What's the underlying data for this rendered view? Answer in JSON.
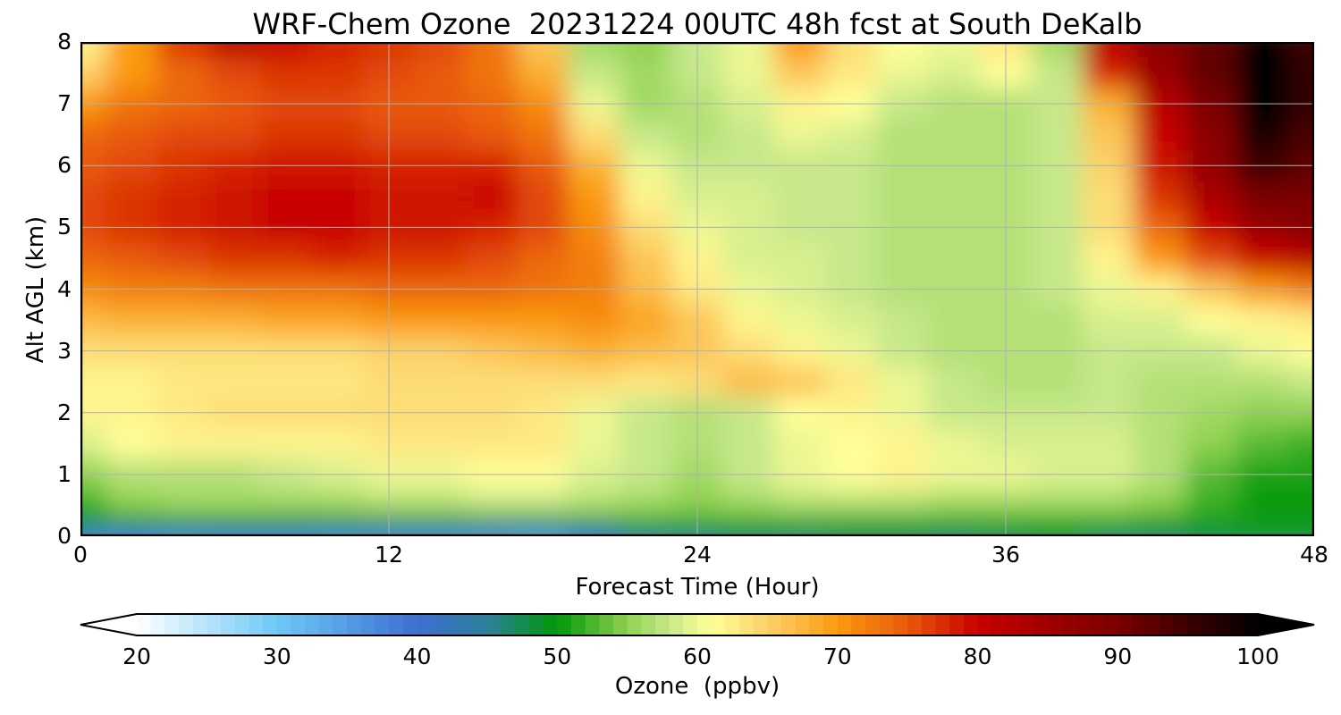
{
  "chart_data": {
    "type": "heatmap",
    "title": "WRF-Chem Ozone  20231224 00UTC 48h fcst at South DeKalb",
    "xlabel": "Forecast Time (Hour)",
    "ylabel": "Alt AGL (km)",
    "xlim": [
      0,
      48
    ],
    "ylim": [
      0,
      8
    ],
    "x_ticks": [
      "0",
      "12",
      "24",
      "36",
      "48"
    ],
    "y_ticks": [
      "0",
      "1",
      "2",
      "3",
      "4",
      "5",
      "6",
      "7",
      "8"
    ],
    "grid": true,
    "colorbar": {
      "label": "Ozone  (ppbv)",
      "min": 20,
      "max": 100,
      "extend": "both",
      "ticks": [
        "20",
        "30",
        "40",
        "50",
        "60",
        "70",
        "80",
        "90",
        "100"
      ],
      "stops": [
        {
          "v": 20,
          "c": "#ffffff"
        },
        {
          "v": 30,
          "c": "#6ec8f6"
        },
        {
          "v": 40,
          "c": "#3f6fd0"
        },
        {
          "v": 45,
          "c": "#2d7f9a"
        },
        {
          "v": 50,
          "c": "#00980a"
        },
        {
          "v": 55,
          "c": "#8fd150"
        },
        {
          "v": 58,
          "c": "#c6e88a"
        },
        {
          "v": 61,
          "c": "#ffff98"
        },
        {
          "v": 65,
          "c": "#fcd16a"
        },
        {
          "v": 70,
          "c": "#fb9a0f"
        },
        {
          "v": 75,
          "c": "#e85a0a"
        },
        {
          "v": 80,
          "c": "#c80000"
        },
        {
          "v": 90,
          "c": "#7a0000"
        },
        {
          "v": 100,
          "c": "#000000"
        }
      ]
    },
    "x_hours": [
      0,
      2,
      4,
      6,
      8,
      10,
      12,
      14,
      16,
      18,
      20,
      22,
      24,
      26,
      28,
      30,
      32,
      34,
      36,
      38,
      40,
      42,
      44,
      46,
      48
    ],
    "z_levels_km": [
      0,
      0.1,
      0.25,
      0.5,
      1,
      1.5,
      2,
      2.5,
      3,
      3.5,
      4,
      4.5,
      5,
      5.5,
      6,
      6.5,
      7,
      7.5,
      8
    ],
    "values": [
      [
        38,
        38,
        37,
        38,
        38,
        37,
        37,
        37,
        36,
        35,
        40,
        44,
        45,
        46,
        46,
        47,
        47,
        46,
        47,
        48,
        46,
        46,
        47,
        48,
        48
      ],
      [
        44,
        43,
        43,
        44,
        44,
        43,
        43,
        43,
        42,
        42,
        45,
        48,
        48,
        49,
        49,
        49,
        49,
        49,
        49,
        50,
        50,
        49,
        50,
        50,
        50
      ],
      [
        50,
        50,
        50,
        50,
        50,
        50,
        50,
        50,
        50,
        50,
        51,
        52,
        52,
        52,
        52,
        52,
        52,
        52,
        52,
        52,
        52,
        51,
        51,
        51,
        51
      ],
      [
        52,
        55,
        56,
        56,
        56,
        56,
        57,
        57,
        58,
        58,
        57,
        56,
        55,
        56,
        57,
        57,
        57,
        56,
        56,
        56,
        56,
        55,
        52,
        50,
        50
      ],
      [
        55,
        57,
        57,
        57,
        58,
        59,
        60,
        60,
        61,
        61,
        59,
        58,
        56,
        58,
        60,
        61,
        62,
        60,
        60,
        59,
        59,
        57,
        53,
        51,
        51
      ],
      [
        59,
        61,
        62,
        62,
        62,
        62,
        63,
        63,
        63,
        63,
        60,
        58,
        57,
        58,
        60,
        61,
        62,
        60,
        59,
        59,
        59,
        57,
        55,
        53,
        52
      ],
      [
        62,
        62,
        63,
        64,
        64,
        64,
        64,
        64,
        64,
        63,
        60,
        58,
        57,
        58,
        61,
        62,
        60,
        58,
        58,
        58,
        58,
        57,
        56,
        55,
        55
      ],
      [
        62,
        62,
        63,
        63,
        63,
        63,
        64,
        64,
        64,
        64,
        64,
        63,
        64,
        67,
        66,
        63,
        60,
        58,
        57,
        57,
        58,
        57,
        57,
        57,
        58
      ],
      [
        64,
        64,
        64,
        64,
        64,
        64,
        65,
        65,
        66,
        67,
        68,
        67,
        66,
        64,
        62,
        60,
        58,
        57,
        57,
        57,
        58,
        58,
        58,
        60,
        61
      ],
      [
        67,
        68,
        68,
        68,
        69,
        69,
        70,
        70,
        70,
        70,
        71,
        69,
        66,
        62,
        60,
        59,
        58,
        57,
        57,
        57,
        59,
        59,
        61,
        62,
        63
      ],
      [
        71,
        72,
        72,
        73,
        73,
        73,
        74,
        74,
        74,
        73,
        72,
        67,
        63,
        60,
        59,
        58,
        57,
        57,
        57,
        58,
        60,
        62,
        66,
        70,
        72
      ],
      [
        74,
        75,
        76,
        77,
        77,
        78,
        77,
        77,
        76,
        74,
        72,
        66,
        62,
        59,
        59,
        58,
        57,
        57,
        57,
        58,
        62,
        70,
        76,
        80,
        82
      ],
      [
        76,
        77,
        78,
        79,
        80,
        80,
        79,
        79,
        78,
        76,
        71,
        64,
        60,
        59,
        58,
        58,
        57,
        57,
        57,
        58,
        64,
        74,
        80,
        86,
        88
      ],
      [
        76,
        77,
        78,
        79,
        80,
        80,
        79,
        79,
        80,
        76,
        70,
        62,
        59,
        59,
        58,
        58,
        57,
        57,
        57,
        58,
        64,
        77,
        84,
        90,
        90
      ],
      [
        75,
        76,
        77,
        78,
        79,
        79,
        78,
        78,
        78,
        75,
        68,
        60,
        58,
        58,
        58,
        58,
        57,
        57,
        57,
        58,
        65,
        79,
        87,
        95,
        92
      ],
      [
        74,
        75,
        76,
        76,
        77,
        77,
        76,
        76,
        75,
        73,
        64,
        58,
        57,
        58,
        60,
        59,
        57,
        57,
        57,
        58,
        66,
        80,
        88,
        98,
        94
      ],
      [
        70,
        73,
        74,
        75,
        76,
        76,
        75,
        75,
        74,
        71,
        60,
        56,
        57,
        59,
        62,
        61,
        58,
        57,
        57,
        58,
        68,
        82,
        90,
        101,
        96
      ],
      [
        65,
        70,
        74,
        76,
        77,
        77,
        76,
        75,
        73,
        68,
        58,
        56,
        58,
        60,
        66,
        63,
        60,
        59,
        61,
        58,
        78,
        86,
        92,
        101,
        96
      ],
      [
        62,
        70,
        77,
        82,
        80,
        78,
        77,
        76,
        73,
        66,
        56,
        55,
        58,
        60,
        70,
        64,
        61,
        60,
        63,
        56,
        82,
        88,
        92,
        101,
        95
      ]
    ]
  }
}
